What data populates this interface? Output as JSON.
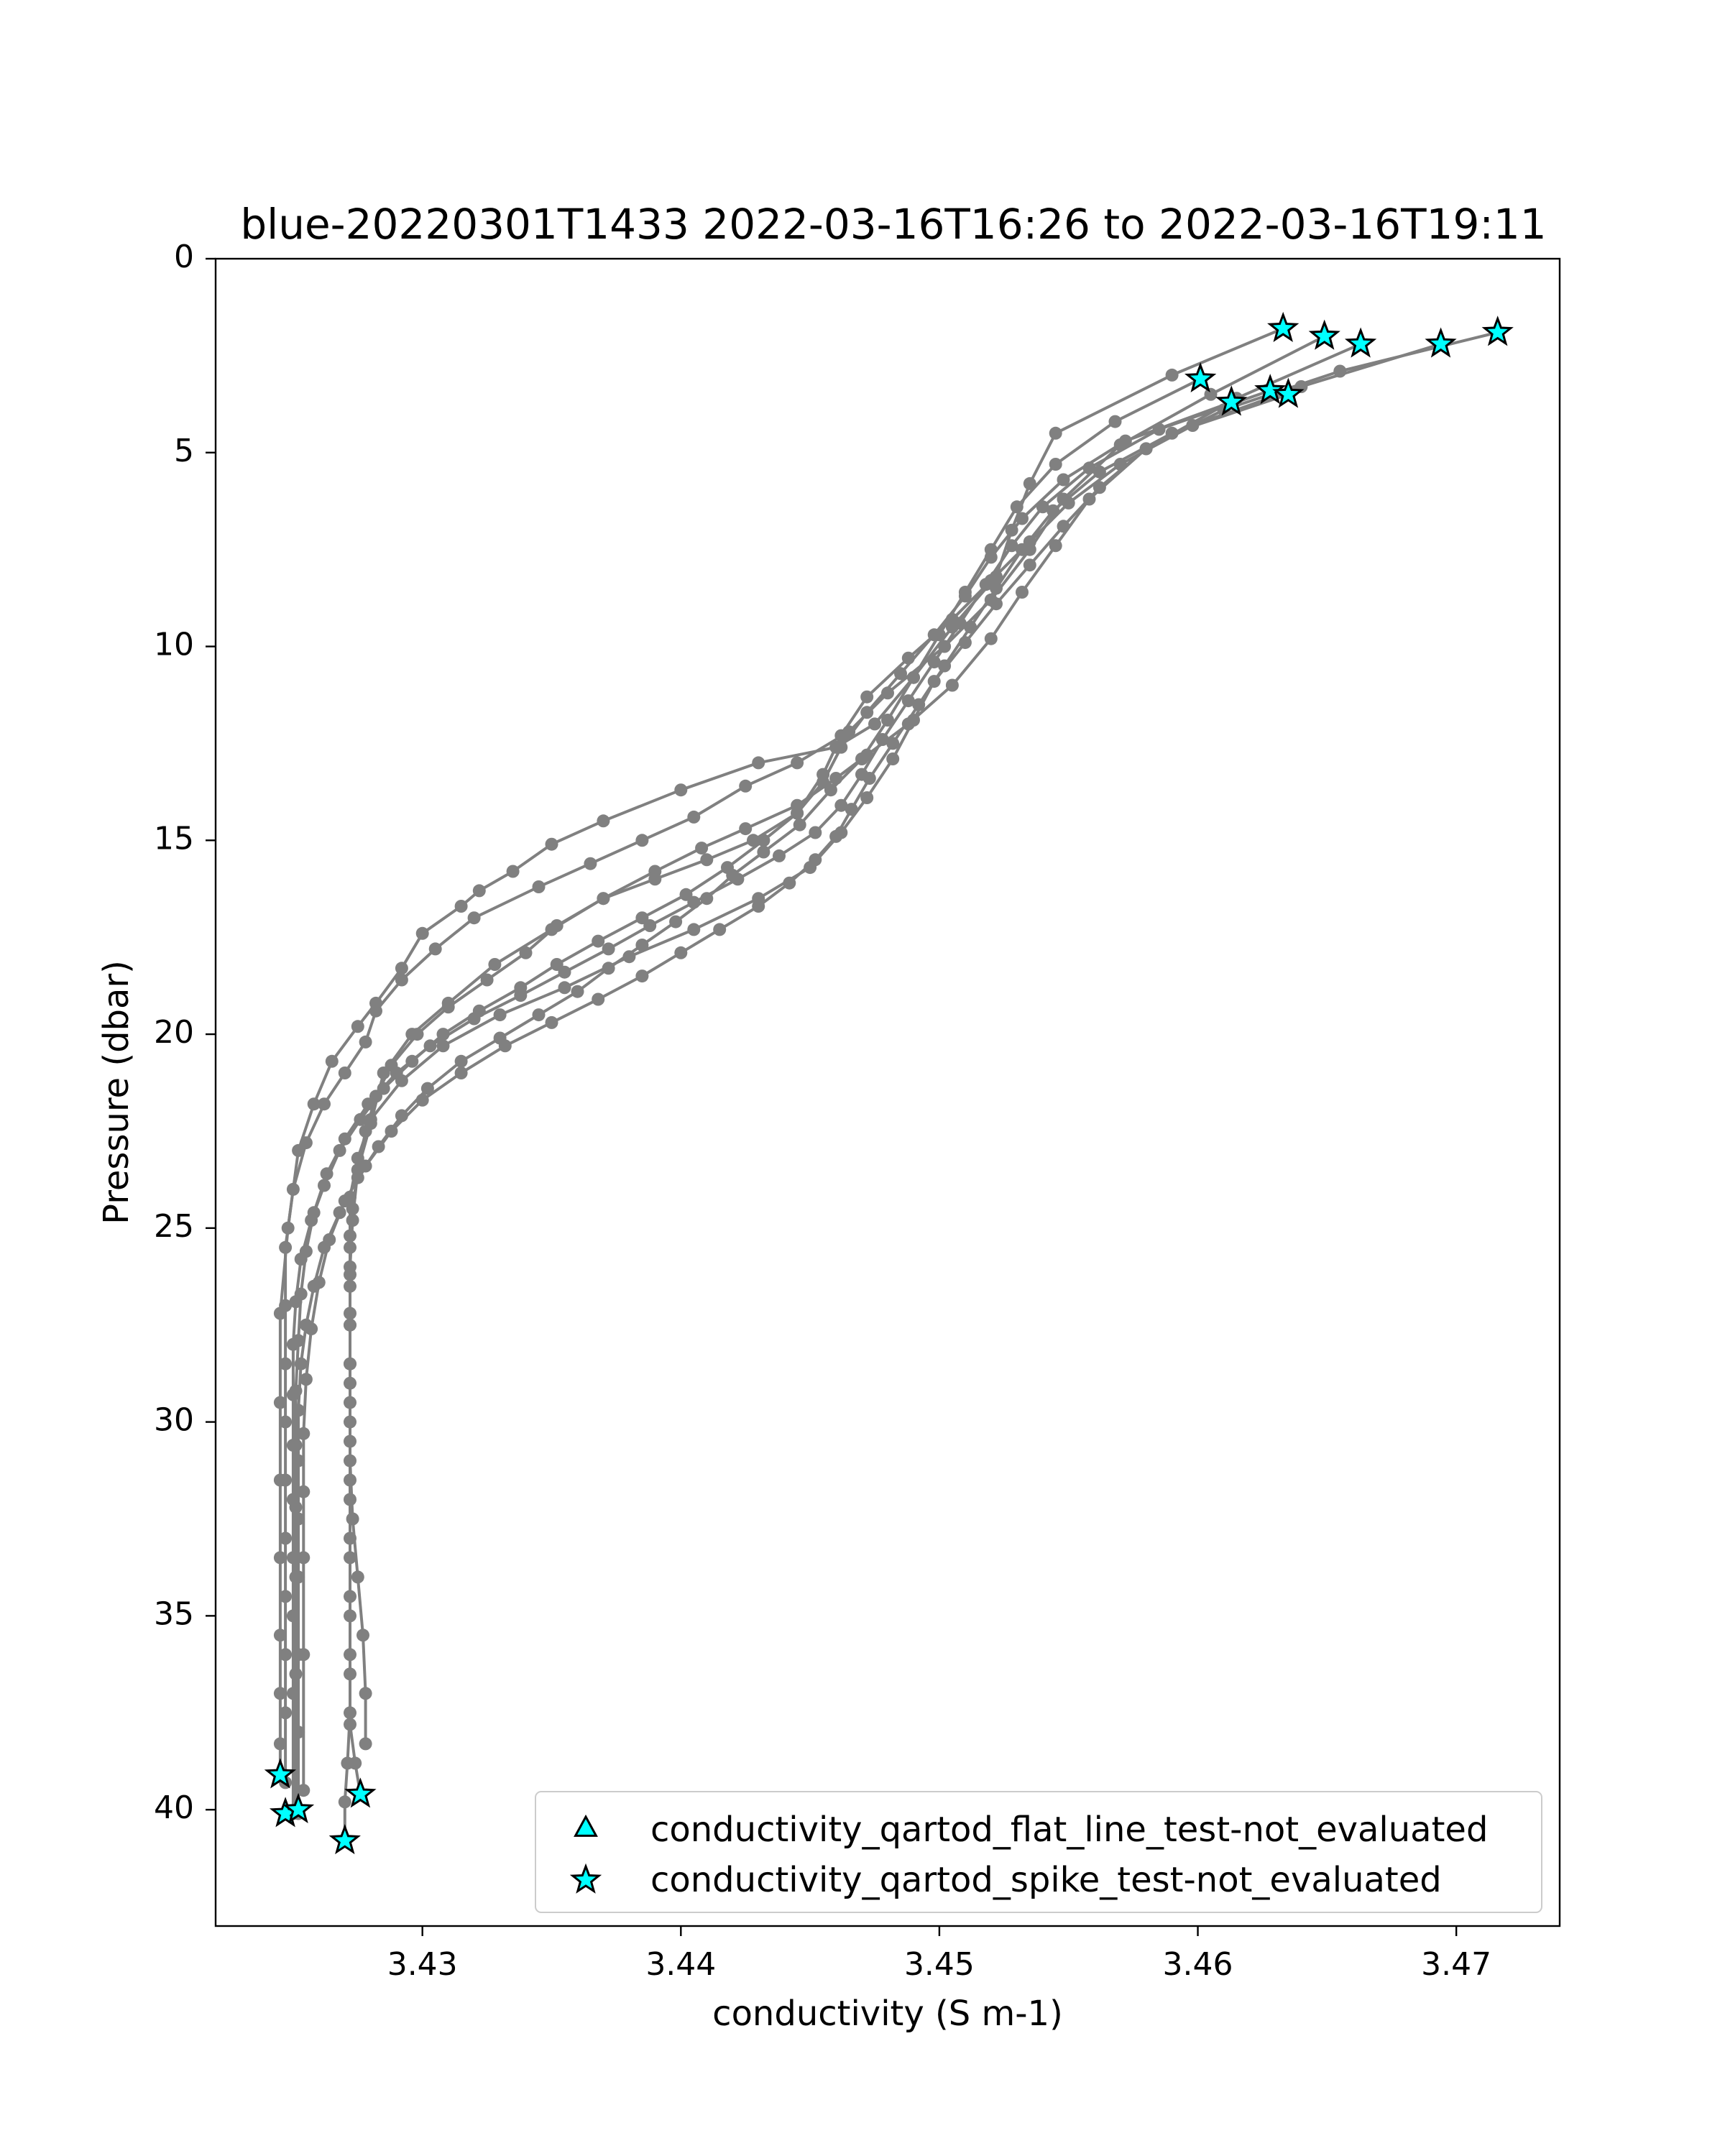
{
  "chart_data": {
    "type": "line",
    "title": "blue-20220301T1433 2022-03-16T16:26 to 2022-03-16T19:11",
    "xlabel": "conductivity (S m-1)",
    "ylabel": "Pressure (dbar)",
    "xlim": [
      3.422,
      3.474
    ],
    "ylim": [
      0,
      43
    ],
    "y_inverted": true,
    "xticks": [
      "3.43",
      "3.44",
      "3.45",
      "3.46",
      "3.47"
    ],
    "xtick_values": [
      3.43,
      3.44,
      3.45,
      3.46,
      3.47
    ],
    "yticks": [
      "0",
      "5",
      "10",
      "15",
      "20",
      "25",
      "30",
      "35",
      "40"
    ],
    "ytick_values": [
      0,
      5,
      10,
      15,
      20,
      25,
      30,
      35,
      40
    ],
    "grid": false,
    "legend": {
      "placement": "lower-right",
      "entries": [
        "conductivity_qartod_flat_line_test-not_evaluated",
        "conductivity_qartod_spike_test-not_evaluated"
      ]
    },
    "colors": {
      "profile_line": "#808080",
      "flag_marker_fill": "#00ffff",
      "flag_marker_edge": "#000000"
    },
    "series": [
      {
        "profile": 1,
        "x": [
          3.4633,
          3.459,
          3.4545,
          3.4535,
          3.4528,
          3.4522,
          3.4505,
          3.449,
          3.4475,
          3.446,
          3.443,
          3.44,
          3.437,
          3.435,
          3.4335,
          3.4322,
          3.4315,
          3.43,
          3.4292,
          3.4282,
          3.4275,
          3.4265,
          3.4258,
          3.4252,
          3.4248,
          3.4245,
          3.4245,
          3.4245,
          3.4245,
          3.4245,
          3.4245,
          3.4245,
          3.4245
        ],
        "y": [
          1.8,
          3.0,
          4.5,
          5.8,
          7.0,
          8.2,
          9.5,
          10.8,
          12.0,
          12.6,
          13.0,
          13.7,
          14.5,
          15.1,
          15.8,
          16.3,
          16.7,
          17.4,
          18.3,
          19.2,
          19.8,
          20.7,
          21.8,
          23.0,
          25.0,
          27.2,
          29.5,
          31.5,
          33.5,
          35.5,
          37.0,
          38.3,
          39.1
        ]
      },
      {
        "profile": 2,
        "x": [
          3.4649,
          3.4605,
          3.457,
          3.4548,
          3.4535,
          3.452,
          3.4502,
          3.448,
          3.4465,
          3.4445,
          3.4425,
          3.4405,
          3.4385,
          3.4365,
          3.4345,
          3.432,
          3.4305,
          3.4292,
          3.4282,
          3.4278,
          3.427,
          3.4262,
          3.4255,
          3.425,
          3.4247,
          3.4247,
          3.4247,
          3.4247,
          3.4247,
          3.4247,
          3.4247,
          3.4247,
          3.4247,
          3.4247
        ],
        "y": [
          2.0,
          3.5,
          4.8,
          6.2,
          7.5,
          8.8,
          10.0,
          11.2,
          12.2,
          13.0,
          13.6,
          14.4,
          15.0,
          15.6,
          16.2,
          17.0,
          17.8,
          18.6,
          19.4,
          20.2,
          21.0,
          21.8,
          22.8,
          24.0,
          25.5,
          27.0,
          28.5,
          30.0,
          31.5,
          33.0,
          34.5,
          36.0,
          37.5,
          39.3
        ]
      },
      {
        "profile": 3,
        "x": [
          3.4663,
          3.4615,
          3.458,
          3.4558,
          3.4545,
          3.4532,
          3.452,
          3.4505,
          3.4488,
          3.4472,
          3.446,
          3.4445,
          3.4425,
          3.4408,
          3.439,
          3.437,
          3.435,
          3.4328,
          3.431,
          3.4296,
          3.4285,
          3.428,
          3.4275,
          3.4273,
          3.4272,
          3.4272,
          3.4272,
          3.4272,
          3.4272,
          3.4272,
          3.4272,
          3.4272,
          3.4272,
          3.4274,
          3.4276
        ],
        "y": [
          2.2,
          3.6,
          4.9,
          6.2,
          7.4,
          8.6,
          9.8,
          11.0,
          12.0,
          12.8,
          13.4,
          14.1,
          14.7,
          15.2,
          15.8,
          16.5,
          17.3,
          18.2,
          19.2,
          20.0,
          21.0,
          22.3,
          23.5,
          24.8,
          26.0,
          27.5,
          29.0,
          30.5,
          32.0,
          33.5,
          35.0,
          36.5,
          37.8,
          38.8,
          39.6
        ]
      },
      {
        "profile": 4,
        "x": [
          3.4694,
          3.464,
          3.4598,
          3.457,
          3.455,
          3.4535,
          3.452,
          3.4505,
          3.4488,
          3.4472,
          3.4462,
          3.4455,
          3.4445,
          3.4428,
          3.441,
          3.439,
          3.437,
          3.4352,
          3.434,
          3.4325,
          3.431,
          3.4298,
          3.4288,
          3.4282,
          3.4278,
          3.4275,
          3.4273,
          3.4272,
          3.4272,
          3.4272,
          3.4272,
          3.4272,
          3.4272,
          3.4273,
          3.4275,
          3.4277,
          3.4278,
          3.4278
        ],
        "y": [
          2.2,
          3.3,
          4.3,
          5.3,
          6.3,
          7.3,
          8.3,
          9.3,
          10.3,
          11.3,
          12.3,
          13.3,
          14.3,
          15.0,
          15.5,
          16.0,
          16.5,
          17.2,
          17.9,
          18.6,
          19.3,
          20.0,
          20.8,
          21.6,
          22.5,
          23.5,
          24.5,
          25.5,
          26.5,
          27.5,
          28.5,
          29.5,
          31.0,
          32.5,
          34.0,
          35.5,
          37.0,
          38.3
        ]
      },
      {
        "profile": 5,
        "x": [
          3.4716,
          3.4655,
          3.461,
          3.458,
          3.4562,
          3.4548,
          3.4535,
          3.4522,
          3.451,
          3.4498,
          3.449,
          3.4482,
          3.4472,
          3.4462,
          3.445,
          3.443,
          3.4405,
          3.438,
          3.4355,
          3.433,
          3.4308,
          3.4292,
          3.428,
          3.4275,
          3.4272,
          3.4272,
          3.4272,
          3.4272,
          3.4272,
          3.4272,
          3.4272,
          3.4272,
          3.4272,
          3.4272,
          3.4272,
          3.4271,
          3.427,
          3.427
        ],
        "y": [
          1.9,
          2.9,
          3.9,
          4.9,
          5.9,
          6.9,
          7.9,
          8.9,
          9.9,
          10.9,
          11.9,
          12.9,
          13.9,
          14.8,
          15.7,
          16.5,
          17.3,
          18.0,
          18.8,
          19.5,
          20.3,
          21.2,
          22.2,
          23.2,
          24.2,
          25.2,
          26.2,
          27.2,
          28.5,
          30.0,
          31.5,
          33.0,
          34.5,
          36.0,
          37.5,
          38.8,
          39.8,
          40.8
        ]
      },
      {
        "profile": 6,
        "x": [
          3.4601,
          3.4568,
          3.4545,
          3.453,
          3.452,
          3.451,
          3.45,
          3.449,
          3.448,
          3.447,
          3.4458,
          3.4446,
          3.4432,
          3.442,
          3.441,
          3.4398,
          3.4385,
          3.4372,
          3.436,
          3.4345,
          3.433,
          3.4315,
          3.4302,
          3.4292,
          3.4283,
          3.4275,
          3.4268,
          3.4262,
          3.4258,
          3.4255,
          3.4253,
          3.4252,
          3.4252,
          3.4252,
          3.4252,
          3.4252,
          3.4252,
          3.4252
        ],
        "y": [
          3.1,
          4.2,
          5.3,
          6.4,
          7.5,
          8.6,
          9.7,
          10.8,
          11.9,
          12.9,
          13.7,
          14.6,
          15.3,
          15.9,
          16.5,
          17.1,
          17.7,
          18.3,
          18.9,
          19.5,
          20.1,
          20.7,
          21.4,
          22.1,
          22.9,
          23.7,
          24.6,
          25.5,
          26.5,
          27.5,
          28.5,
          29.7,
          31.0,
          32.5,
          34.0,
          36.0,
          38.0,
          40.1
        ]
      },
      {
        "profile": 7,
        "x": [
          3.4613,
          3.4572,
          3.4548,
          3.4532,
          3.452,
          3.451,
          3.4498,
          3.4485,
          3.4472,
          3.4462,
          3.4455,
          3.4445,
          3.4432,
          3.4418,
          3.4402,
          3.4385,
          3.4368,
          3.4352,
          3.4338,
          3.4322,
          3.4308,
          3.4296,
          3.4285,
          3.4276,
          3.4268,
          3.4262,
          3.4257,
          3.4253,
          3.4251,
          3.425,
          3.425,
          3.425,
          3.425,
          3.425,
          3.425,
          3.425,
          3.425
        ],
        "y": [
          3.7,
          4.7,
          5.7,
          6.7,
          7.7,
          8.7,
          9.7,
          10.7,
          11.7,
          12.6,
          13.5,
          14.3,
          15.0,
          15.7,
          16.4,
          17.0,
          17.6,
          18.2,
          18.8,
          19.4,
          20.0,
          20.7,
          21.4,
          22.2,
          23.0,
          23.9,
          24.8,
          25.8,
          26.9,
          28.0,
          29.3,
          30.6,
          32.0,
          33.5,
          35.0,
          37.0,
          40.1
        ]
      },
      {
        "profile": 8,
        "x": [
          3.4628,
          3.4585,
          3.4558,
          3.454,
          3.4528,
          3.4518,
          3.4508,
          3.4498,
          3.4488,
          3.4478,
          3.447,
          3.4462,
          3.4452,
          3.4438,
          3.4422,
          3.4405,
          3.4388,
          3.4372,
          3.4355,
          3.4338,
          3.432,
          3.4303,
          3.429,
          3.4279,
          3.427,
          3.4263,
          3.4258,
          3.4255,
          3.4253,
          3.4252,
          3.4251,
          3.4251,
          3.4251,
          3.4251,
          3.4251,
          3.4251
        ],
        "y": [
          3.4,
          4.4,
          5.4,
          6.4,
          7.4,
          8.4,
          9.4,
          10.4,
          11.4,
          12.4,
          13.3,
          14.1,
          14.8,
          15.4,
          16.0,
          16.6,
          17.2,
          17.8,
          18.4,
          19.0,
          19.6,
          20.3,
          21.0,
          21.8,
          22.7,
          23.6,
          24.6,
          25.6,
          26.7,
          27.9,
          29.2,
          30.6,
          32.2,
          34.0,
          36.5,
          40.0
        ]
      },
      {
        "profile": 9,
        "x": [
          3.4635,
          3.459,
          3.4562,
          3.4544,
          3.4532,
          3.4522,
          3.4512,
          3.4502,
          3.4492,
          3.4482,
          3.4473,
          3.4466,
          3.446,
          3.4452,
          3.4442,
          3.443,
          3.4415,
          3.44,
          3.4385,
          3.4368,
          3.435,
          3.4332,
          3.4315,
          3.43,
          3.4288,
          3.4278,
          3.427,
          3.4264,
          3.426,
          3.4257,
          3.4255,
          3.4254,
          3.4254,
          3.4254,
          3.4254,
          3.4254
        ],
        "y": [
          3.5,
          4.5,
          5.5,
          6.5,
          7.5,
          8.5,
          9.5,
          10.5,
          11.5,
          12.5,
          13.4,
          14.2,
          14.9,
          15.5,
          16.1,
          16.7,
          17.3,
          17.9,
          18.5,
          19.1,
          19.7,
          20.3,
          21.0,
          21.7,
          22.5,
          23.4,
          24.3,
          25.3,
          26.4,
          27.6,
          28.9,
          30.3,
          31.8,
          33.5,
          36.0,
          39.5
        ]
      }
    ],
    "flags": {
      "flat_line_test_not_evaluated": [],
      "spike_test_not_evaluated": [
        {
          "x": 3.4633,
          "y": 1.8
        },
        {
          "x": 3.4649,
          "y": 2.0
        },
        {
          "x": 3.4663,
          "y": 2.2
        },
        {
          "x": 3.4694,
          "y": 2.2
        },
        {
          "x": 3.4716,
          "y": 1.9
        },
        {
          "x": 3.4601,
          "y": 3.1
        },
        {
          "x": 3.4613,
          "y": 3.7
        },
        {
          "x": 3.4628,
          "y": 3.4
        },
        {
          "x": 3.4635,
          "y": 3.5
        },
        {
          "x": 3.4245,
          "y": 39.1
        },
        {
          "x": 3.4247,
          "y": 40.1
        },
        {
          "x": 3.4252,
          "y": 40.0
        },
        {
          "x": 3.4276,
          "y": 39.6
        },
        {
          "x": 3.427,
          "y": 40.8
        }
      ]
    }
  }
}
